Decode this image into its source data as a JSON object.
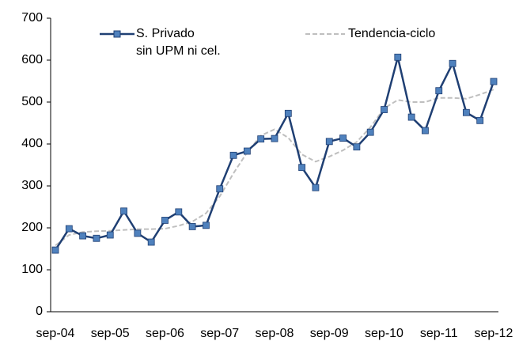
{
  "chart_data": {
    "type": "line",
    "categories": [
      "sep-04",
      null,
      null,
      null,
      "sep-05",
      null,
      null,
      null,
      "sep-06",
      null,
      null,
      null,
      "sep-07",
      null,
      null,
      null,
      "sep-08",
      null,
      null,
      null,
      "sep-09",
      null,
      null,
      null,
      "sep-10",
      null,
      null,
      null,
      "sep-11",
      null,
      null,
      null,
      "sep-12"
    ],
    "series": [
      {
        "name": "S. Privado\nsin UPM ni cel.",
        "color": "#1f3f73",
        "marker_color": "#4f81bd",
        "dashed": false,
        "values": [
          147,
          198,
          181,
          175,
          183,
          240,
          187,
          166,
          218,
          238,
          203,
          206,
          293,
          373,
          383,
          412,
          413,
          473,
          344,
          296,
          406,
          414,
          393,
          428,
          482,
          607,
          464,
          432,
          527,
          592,
          475,
          456,
          549
        ]
      },
      {
        "name": "Tendencia-ciclo",
        "color": "#bfbfbf",
        "dashed": true,
        "values": [
          158,
          183,
          190,
          192,
          193,
          195,
          197,
          197,
          198,
          205,
          215,
          235,
          275,
          330,
          380,
          420,
          435,
          415,
          375,
          358,
          370,
          385,
          405,
          440,
          485,
          505,
          500,
          500,
          510,
          510,
          508,
          518,
          530
        ]
      }
    ],
    "ylim": [
      0,
      700
    ],
    "yticks": [
      0,
      100,
      200,
      300,
      400,
      500,
      600,
      700
    ],
    "grid": false
  }
}
